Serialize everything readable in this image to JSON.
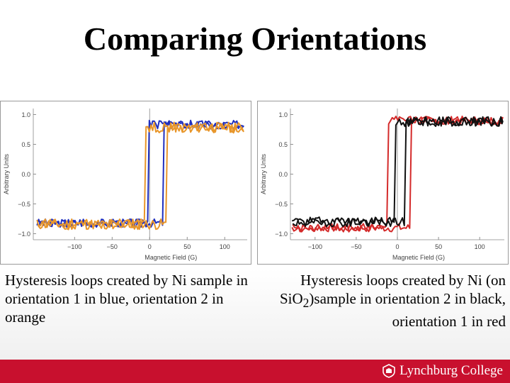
{
  "title": "Comparing Orientations",
  "captions": {
    "left": "Hysteresis loops created by Ni sample in orientation 1 in blue, orientation 2 in orange",
    "right_pre": "Hysteresis loops created by Ni (on Si",
    "right_mid": "O",
    "right_sub": "2",
    "right_post": ")sample in orientation 2 in black, orientation 1 in red"
  },
  "footer": {
    "logo_text": "Lynchburg College",
    "logo_icon": "seal-icon"
  },
  "chart_data": [
    {
      "type": "line",
      "xlabel": "Magnetic Field (G)",
      "ylabel": "Arbitrary Units",
      "xlim": [
        -155,
        130
      ],
      "ylim": [
        -1.1,
        1.1
      ],
      "xticks": [
        -100,
        -50,
        0,
        50,
        100
      ],
      "xtick_labels": [
        "−100",
        "−50",
        "0",
        "50",
        "100"
      ],
      "yticks": [
        -1.0,
        -0.5,
        0.0,
        0.5,
        1.0
      ],
      "ytick_labels": [
        "−1.0",
        "−0.5",
        "0.0",
        "0.5",
        "1.0"
      ],
      "series": [
        {
          "color": "#1f2fbf",
          "x_range": [
            -150,
            125
          ],
          "low": -0.82,
          "high": 0.83,
          "coercive": [
            -2,
            18
          ],
          "noise": 0.07,
          "seed": 3
        },
        {
          "color": "#e8962a",
          "x_range": [
            -150,
            125
          ],
          "low": -0.84,
          "high": 0.78,
          "coercive": [
            -6,
            22
          ],
          "noise": 0.09,
          "seed": 11
        }
      ]
    },
    {
      "type": "line",
      "xlabel": "Magnetic Field (G)",
      "ylabel": "Arbitrary Units",
      "xlim": [
        -130,
        130
      ],
      "ylim": [
        -1.1,
        1.1
      ],
      "xticks": [
        -100,
        -50,
        0,
        50,
        100
      ],
      "xtick_labels": [
        "−100",
        "−50",
        "0",
        "50",
        "100"
      ],
      "yticks": [
        -1.0,
        -0.5,
        0.0,
        0.5,
        1.0
      ],
      "ytick_labels": [
        "−1.0",
        "−0.5",
        "0.0",
        "0.5",
        "1.0"
      ],
      "series": [
        {
          "color": "#d42a2a",
          "x_range": [
            -128,
            128
          ],
          "low": -0.9,
          "high": 0.9,
          "coercive": [
            -12,
            16
          ],
          "noise": 0.07,
          "seed": 7
        },
        {
          "color": "#111111",
          "x_range": [
            -128,
            128
          ],
          "low": -0.8,
          "high": 0.88,
          "coercive": [
            -2,
            10
          ],
          "noise": 0.08,
          "seed": 19
        }
      ]
    }
  ]
}
